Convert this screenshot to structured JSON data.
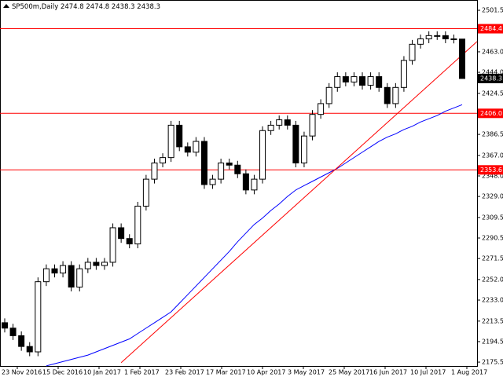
{
  "chart_data": {
    "type": "candlestick",
    "title": "SP500m,Daily",
    "xticks": [
      "23 Nov 2016",
      "15 Dec 2016",
      "10 Jan 2017",
      "1 Feb 2017",
      "23 Feb 2017",
      "17 Mar 2017",
      "10 Apr 2017",
      "3 May 2017",
      "25 May 2017",
      "16 Jun 2017",
      "10 Jul 2017",
      "1 Aug 2017"
    ],
    "open": [
      2212,
      2207,
      2200,
      2190,
      2185,
      2250,
      2262,
      2258,
      2265,
      2245,
      2262,
      2268,
      2265,
      2268,
      2300,
      2290,
      2285,
      2320,
      2345,
      2360,
      2365,
      2395,
      2375,
      2370,
      2380,
      2340,
      2345,
      2360,
      2358,
      2350,
      2335,
      2345,
      2390,
      2395,
      2400,
      2395,
      2360,
      2385,
      2405,
      2415,
      2430,
      2440,
      2435,
      2440,
      2432,
      2440,
      2430,
      2415,
      2430,
      2455,
      2470,
      2475,
      2478,
      2478,
      2475,
      2474.8
    ],
    "high": [
      2216,
      2211,
      2204,
      2194,
      2254,
      2266,
      2266,
      2269,
      2269,
      2266,
      2272,
      2272,
      2272,
      2304,
      2304,
      2294,
      2324,
      2349,
      2364,
      2369,
      2399,
      2399,
      2379,
      2384,
      2384,
      2349,
      2364,
      2364,
      2362,
      2354,
      2349,
      2394,
      2399,
      2404,
      2404,
      2399,
      2389,
      2409,
      2419,
      2434,
      2444,
      2444,
      2444,
      2444,
      2444,
      2444,
      2434,
      2434,
      2459,
      2474,
      2479,
      2482,
      2482,
      2482,
      2479,
      2474.8
    ],
    "low": [
      2203,
      2196,
      2186,
      2181,
      2181,
      2246,
      2254,
      2254,
      2241,
      2241,
      2258,
      2261,
      2261,
      2264,
      2286,
      2281,
      2281,
      2316,
      2341,
      2356,
      2361,
      2371,
      2366,
      2366,
      2336,
      2336,
      2341,
      2354,
      2346,
      2331,
      2331,
      2341,
      2386,
      2391,
      2391,
      2356,
      2356,
      2381,
      2401,
      2411,
      2426,
      2431,
      2431,
      2428,
      2428,
      2426,
      2411,
      2411,
      2426,
      2451,
      2466,
      2471,
      2474,
      2471,
      2470.8,
      2438.3
    ],
    "close": [
      2207,
      2200,
      2190,
      2185,
      2250,
      2262,
      2258,
      2265,
      2245,
      2262,
      2268,
      2265,
      2268,
      2300,
      2290,
      2285,
      2320,
      2345,
      2360,
      2365,
      2395,
      2375,
      2370,
      2380,
      2340,
      2345,
      2360,
      2358,
      2350,
      2335,
      2345,
      2390,
      2395,
      2400,
      2395,
      2360,
      2385,
      2405,
      2415,
      2430,
      2440,
      2435,
      2440,
      2432,
      2440,
      2430,
      2415,
      2430,
      2455,
      2470,
      2475,
      2478,
      2478,
      2475,
      2474.8,
      2438.3
    ],
    "moving_average": {
      "color": "#0000ff",
      "values": [
        null,
        null,
        null,
        null,
        null,
        2172,
        2174,
        2176,
        2178,
        2180,
        2182,
        2185,
        2188,
        2191,
        2194,
        2197,
        2202,
        2207,
        2212,
        2217,
        2222,
        2230,
        2238,
        2246,
        2254,
        2262,
        2270,
        2278,
        2287,
        2295,
        2303,
        2309,
        2316,
        2322,
        2329,
        2335,
        2339,
        2343,
        2347,
        2351,
        2355,
        2360,
        2365,
        2370,
        2375,
        2380,
        2384,
        2387,
        2391,
        2394,
        2398,
        2401,
        2404,
        2408,
        2411,
        2414
      ]
    },
    "trendline": {
      "color": "#ff0000",
      "start": 2175,
      "end": 2460
    },
    "levels": {
      "color": "#ff0000",
      "values": [
        2484.4,
        {
          "value": 2406,
          "label": "2406.0"
        },
        2353.6
      ]
    },
    "ylim": [
      2171.9,
      2511.0
    ],
    "yticks": [
      2175.5,
      2194.5,
      2213.5,
      {
        "value": 2233,
        "label": "2233.0"
      },
      {
        "value": 2252,
        "label": "2252.0"
      },
      2271.5,
      2290.5,
      2309.5,
      {
        "value": 2329,
        "label": "2329.0"
      },
      {
        "value": 2348,
        "label": "2348.0"
      },
      {
        "value": 2367,
        "label": "2367.0"
      },
      2386.5,
      2424.5,
      {
        "value": 2444,
        "label": "2444.0"
      },
      {
        "value": 2463,
        "label": "2463.0"
      },
      2501.5
    ]
  }
}
